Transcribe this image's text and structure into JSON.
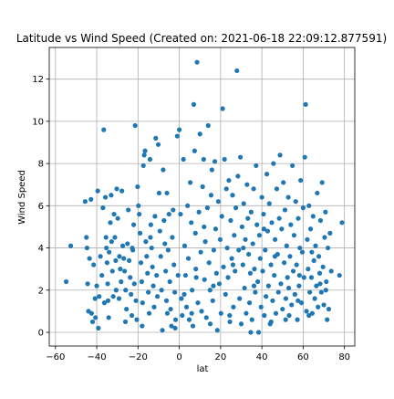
{
  "chart_data": {
    "type": "scatter",
    "title": "Latitude vs Wind Speed (Created on: 2021-06-18 22:09:12.877591)",
    "xlabel": "lat",
    "ylabel": "Wind Speed",
    "xlim": [
      -63,
      85
    ],
    "ylim": [
      -0.65,
      13.5
    ],
    "xticks": [
      -60,
      -40,
      -20,
      0,
      20,
      40,
      60,
      80
    ],
    "yticks": [
      0,
      2,
      4,
      6,
      8,
      10,
      12
    ],
    "grid": true,
    "colors": {
      "points": "#1f77b4",
      "grid": "#b0b0b0",
      "axes": "#000000"
    },
    "points": [
      [
        -54.8,
        2.4
      ],
      [
        -52.6,
        4.1
      ],
      [
        -45.6,
        6.2
      ],
      [
        -45.0,
        4.5
      ],
      [
        -44.7,
        4.0
      ],
      [
        -44.4,
        2.3
      ],
      [
        -43.5,
        3.5
      ],
      [
        -42.8,
        6.3
      ],
      [
        -42.5,
        0.9
      ],
      [
        -42.0,
        0.5
      ],
      [
        -41.5,
        3.2
      ],
      [
        -40.8,
        1.6
      ],
      [
        -40.0,
        2.2
      ],
      [
        -39.5,
        6.7
      ],
      [
        -39.2,
        0.2
      ],
      [
        -38.8,
        1.7
      ],
      [
        -38.2,
        3.6
      ],
      [
        -37.5,
        2.7
      ],
      [
        -36.6,
        9.6
      ],
      [
        -36.3,
        1.4
      ],
      [
        -35.8,
        6.4
      ],
      [
        -35.5,
        4.5
      ],
      [
        -35.3,
        4.0
      ],
      [
        -35.0,
        3.3
      ],
      [
        -34.7,
        2.3
      ],
      [
        -34.5,
        1.5
      ],
      [
        -34.2,
        0.7
      ],
      [
        -34.0,
        3.8
      ],
      [
        -33.4,
        5.2
      ],
      [
        -33.0,
        6.5
      ],
      [
        -32.8,
        4.3
      ],
      [
        -32.4,
        2.9
      ],
      [
        -32.0,
        1.7
      ],
      [
        -31.6,
        5.6
      ],
      [
        -31.2,
        4.5
      ],
      [
        -30.8,
        3.4
      ],
      [
        -30.6,
        2.0
      ],
      [
        -30.3,
        6.8
      ],
      [
        -29.8,
        5.4
      ],
      [
        -29.2,
        1.6
      ],
      [
        -28.6,
        3.0
      ],
      [
        -28.2,
        2.4
      ],
      [
        -27.8,
        6.7
      ],
      [
        -27.4,
        4.1
      ],
      [
        -26.9,
        3.5
      ],
      [
        -26.5,
        2.9
      ],
      [
        -26.0,
        2.0
      ],
      [
        -25.6,
        1.1
      ],
      [
        -25.1,
        4.2
      ],
      [
        -24.7,
        5.8
      ],
      [
        -24.3,
        3.4
      ],
      [
        -23.8,
        2.6
      ],
      [
        -23.4,
        1.8
      ],
      [
        -23.0,
        0.8
      ],
      [
        -22.5,
        3.9
      ],
      [
        -22.1,
        5.1
      ],
      [
        -21.8,
        2.3
      ],
      [
        -21.4,
        9.8
      ],
      [
        -21.0,
        1.5
      ],
      [
        -20.6,
        0.6
      ],
      [
        -20.2,
        6.9
      ],
      [
        -19.8,
        6.0
      ],
      [
        -19.4,
        5.6
      ],
      [
        -19.0,
        4.7
      ],
      [
        -18.6,
        3.3
      ],
      [
        -18.2,
        2.4
      ],
      [
        -17.8,
        1.4
      ],
      [
        -17.4,
        7.9
      ],
      [
        -17.0,
        8.4
      ],
      [
        -16.6,
        8.6
      ],
      [
        -16.2,
        4.3
      ],
      [
        -15.8,
        3.6
      ],
      [
        -15.4,
        2.8
      ],
      [
        -15.0,
        1.9
      ],
      [
        -14.6,
        0.9
      ],
      [
        -14.2,
        8.2
      ],
      [
        -13.8,
        5.1
      ],
      [
        -13.4,
        4.0
      ],
      [
        -13.0,
        3.1
      ],
      [
        -12.6,
        2.2
      ],
      [
        -12.2,
        1.2
      ],
      [
        -11.8,
        5.5
      ],
      [
        -11.4,
        9.2
      ],
      [
        -11.0,
        2.7
      ],
      [
        -10.6,
        1.7
      ],
      [
        -10.2,
        8.9
      ],
      [
        -9.8,
        6.6
      ],
      [
        -9.4,
        4.8
      ],
      [
        -9.0,
        3.6
      ],
      [
        -8.6,
        2.0
      ],
      [
        -8.2,
        0.1
      ],
      [
        -7.8,
        7.7
      ],
      [
        -7.4,
        5.3
      ],
      [
        -7.0,
        4.2
      ],
      [
        -6.6,
        2.9
      ],
      [
        -6.2,
        1.5
      ],
      [
        -5.8,
        0.9
      ],
      [
        -5.4,
        3.9
      ],
      [
        -5.0,
        5.6
      ],
      [
        -4.6,
        2.4
      ],
      [
        -4.2,
        1.1
      ],
      [
        -3.8,
        0.3
      ],
      [
        -3.4,
        4.5
      ],
      [
        -3.0,
        5.8
      ],
      [
        -2.6,
        3.2
      ],
      [
        -2.2,
        1.9
      ],
      [
        -1.8,
        0.6
      ],
      [
        -1.0,
        9.3
      ],
      [
        -0.6,
        2.7
      ],
      [
        0.0,
        9.6
      ],
      [
        0.6,
        5.6
      ],
      [
        1.0,
        1.6
      ],
      [
        1.4,
        0.8
      ],
      [
        2.0,
        8.2
      ],
      [
        2.6,
        4.1
      ],
      [
        3.0,
        2.7
      ],
      [
        3.5,
        1.2
      ],
      [
        4.0,
        6.0
      ],
      [
        4.4,
        3.5
      ],
      [
        4.8,
        0.6
      ],
      [
        5.3,
        7.1
      ],
      [
        5.8,
        5.2
      ],
      [
        6.2,
        2.0
      ],
      [
        6.6,
        0.3
      ],
      [
        7.0,
        10.8
      ],
      [
        7.4,
        8.6
      ],
      [
        7.8,
        4.7
      ],
      [
        8.2,
        2.6
      ],
      [
        8.6,
        12.8
      ],
      [
        9.0,
        1.4
      ],
      [
        9.5,
        5.7
      ],
      [
        10.0,
        9.4
      ],
      [
        10.4,
        3.8
      ],
      [
        10.8,
        1.0
      ],
      [
        11.3,
        6.9
      ],
      [
        11.8,
        8.2
      ],
      [
        12.2,
        2.5
      ],
      [
        12.6,
        4.3
      ],
      [
        13.1,
        0.7
      ],
      [
        13.6,
        5.9
      ],
      [
        14.0,
        9.8
      ],
      [
        14.4,
        3.3
      ],
      [
        14.9,
        2.0
      ],
      [
        15.4,
        6.5
      ],
      [
        15.8,
        7.7
      ],
      [
        16.2,
        1.5
      ],
      [
        16.7,
        3.9
      ],
      [
        17.2,
        8.1
      ],
      [
        17.6,
        4.9
      ],
      [
        18.0,
        2.8
      ],
      [
        18.4,
        0.1
      ],
      [
        18.9,
        6.2
      ],
      [
        19.4,
        2.3
      ],
      [
        19.8,
        4.4
      ],
      [
        20.2,
        0.9
      ],
      [
        20.6,
        5.5
      ],
      [
        21.0,
        10.6
      ],
      [
        21.4,
        3.1
      ],
      [
        21.9,
        8.2
      ],
      [
        22.4,
        1.8
      ],
      [
        22.8,
        6.8
      ],
      [
        23.2,
        4.0
      ],
      [
        23.6,
        2.6
      ],
      [
        24.0,
        7.2
      ],
      [
        24.4,
        0.8
      ],
      [
        24.9,
        5.3
      ],
      [
        25.4,
        3.5
      ],
      [
        25.8,
        6.5
      ],
      [
        26.2,
        1.2
      ],
      [
        26.6,
        4.6
      ],
      [
        27.0,
        2.9
      ],
      [
        27.4,
        5.9
      ],
      [
        27.9,
        12.4
      ],
      [
        28.4,
        7.4
      ],
      [
        28.8,
        3.9
      ],
      [
        29.2,
        1.6
      ],
      [
        29.6,
        8.3
      ],
      [
        30.0,
        0.4
      ],
      [
        30.4,
        5.0
      ],
      [
        30.8,
        3.2
      ],
      [
        31.2,
        6.1
      ],
      [
        31.6,
        2.1
      ],
      [
        32.0,
        4.4
      ],
      [
        32.4,
        0.9
      ],
      [
        32.8,
        7.0
      ],
      [
        33.2,
        5.4
      ],
      [
        33.6,
        3.7
      ],
      [
        34.0,
        1.4
      ],
      [
        34.4,
        2.8
      ],
      [
        34.8,
        5.7
      ],
      [
        35.2,
        0.6
      ],
      [
        35.6,
        4.2
      ],
      [
        36.0,
        6.8
      ],
      [
        36.4,
        3.0
      ],
      [
        36.8,
        1.9
      ],
      [
        37.2,
        7.9
      ],
      [
        37.6,
        5.1
      ],
      [
        38.0,
        2.4
      ],
      [
        38.4,
        0.0
      ],
      [
        38.8,
        4.6
      ],
      [
        39.2,
        3.5
      ],
      [
        39.6,
        1.2
      ],
      [
        40.0,
        6.4
      ],
      [
        40.4,
        2.9
      ],
      [
        40.8,
        5.6
      ],
      [
        41.2,
        0.8
      ],
      [
        41.6,
        3.9
      ],
      [
        42.0,
        1.7
      ],
      [
        42.4,
        7.5
      ],
      [
        42.8,
        4.8
      ],
      [
        43.2,
        2.2
      ],
      [
        43.6,
        6.1
      ],
      [
        44.0,
        0.4
      ],
      [
        44.4,
        3.2
      ],
      [
        44.8,
        5.2
      ],
      [
        45.2,
        1.5
      ],
      [
        45.6,
        8.0
      ],
      [
        46.0,
        2.7
      ],
      [
        46.4,
        4.4
      ],
      [
        46.8,
        0.9
      ],
      [
        47.2,
        6.8
      ],
      [
        47.6,
        3.7
      ],
      [
        48.0,
        1.9
      ],
      [
        48.4,
        5.4
      ],
      [
        48.8,
        8.4
      ],
      [
        49.2,
        2.3
      ],
      [
        49.6,
        4.9
      ],
      [
        50.0,
        1.1
      ],
      [
        50.4,
        7.1
      ],
      [
        50.8,
        3.3
      ],
      [
        51.2,
        5.8
      ],
      [
        51.6,
        1.6
      ],
      [
        52.0,
        4.1
      ],
      [
        52.4,
        2.6
      ],
      [
        52.8,
        6.4
      ],
      [
        53.2,
        0.8
      ],
      [
        53.6,
        3.6
      ],
      [
        54.0,
        5.1
      ],
      [
        54.4,
        1.3
      ],
      [
        54.8,
        7.9
      ],
      [
        55.2,
        2.9
      ],
      [
        55.6,
        4.6
      ],
      [
        56.0,
        1.8
      ],
      [
        56.4,
        6.2
      ],
      [
        56.8,
        3.2
      ],
      [
        57.2,
        0.6
      ],
      [
        57.6,
        5.4
      ],
      [
        58.0,
        2.2
      ],
      [
        58.4,
        4.0
      ],
      [
        58.8,
        7.2
      ],
      [
        59.2,
        1.4
      ],
      [
        59.6,
        3.8
      ],
      [
        60.0,
        5.9
      ],
      [
        60.4,
        2.6
      ],
      [
        60.8,
        8.3
      ],
      [
        61.2,
        10.8
      ],
      [
        61.6,
        1.0
      ],
      [
        62.0,
        4.4
      ],
      [
        62.4,
        3.0
      ],
      [
        62.8,
        6.0
      ],
      [
        63.2,
        1.9
      ],
      [
        63.6,
        4.9
      ],
      [
        64.0,
        2.6
      ],
      [
        64.4,
        0.9
      ],
      [
        64.8,
        5.5
      ],
      [
        65.2,
        3.4
      ],
      [
        65.6,
        1.6
      ],
      [
        66.0,
        4.1
      ],
      [
        66.4,
        2.2
      ],
      [
        66.8,
        6.6
      ],
      [
        67.2,
        1.2
      ],
      [
        67.6,
        3.6
      ],
      [
        68.0,
        2.8
      ],
      [
        68.4,
        5.3
      ],
      [
        68.8,
        1.9
      ],
      [
        69.2,
        7.1
      ],
      [
        69.6,
        3.1
      ],
      [
        70.0,
        1.3
      ],
      [
        70.4,
        4.5
      ],
      [
        70.8,
        5.7
      ],
      [
        71.2,
        2.4
      ],
      [
        71.6,
        0.6
      ],
      [
        72.0,
        4.0
      ],
      [
        72.4,
        1.1
      ],
      [
        73.0,
        4.7
      ],
      [
        73.6,
        2.9
      ],
      [
        77.6,
        2.7
      ],
      [
        78.8,
        5.2
      ],
      [
        -40.6,
        0.7
      ],
      [
        -26.1,
        0.5
      ],
      [
        -18.0,
        0.3
      ],
      [
        -2.0,
        0.2
      ],
      [
        6.0,
        0.9
      ],
      [
        15.0,
        0.4
      ],
      [
        24.5,
        0.5
      ],
      [
        34.6,
        0.0
      ],
      [
        44.5,
        0.5
      ],
      [
        51.5,
        0.6
      ],
      [
        57.5,
        1.5
      ],
      [
        62.8,
        0.8
      ],
      [
        -44.0,
        1.0
      ],
      [
        -37.0,
        5.9
      ],
      [
        -29.0,
        3.6
      ],
      [
        -22.8,
        4.0
      ],
      [
        -14.0,
        4.5
      ],
      [
        -6.0,
        6.6
      ],
      [
        2.4,
        1.8
      ],
      [
        8.0,
        3.0
      ],
      [
        12.0,
        5.0
      ],
      [
        16.5,
        2.2
      ],
      [
        26.0,
        3.2
      ],
      [
        31.0,
        4.0
      ],
      [
        36.2,
        2.2
      ],
      [
        41.0,
        4.9
      ],
      [
        46.3,
        3.6
      ],
      [
        53.0,
        2.1
      ],
      [
        58.2,
        2.7
      ],
      [
        64.2,
        3.8
      ],
      [
        68.2,
        2.3
      ],
      [
        71.0,
        2.0
      ]
    ]
  }
}
